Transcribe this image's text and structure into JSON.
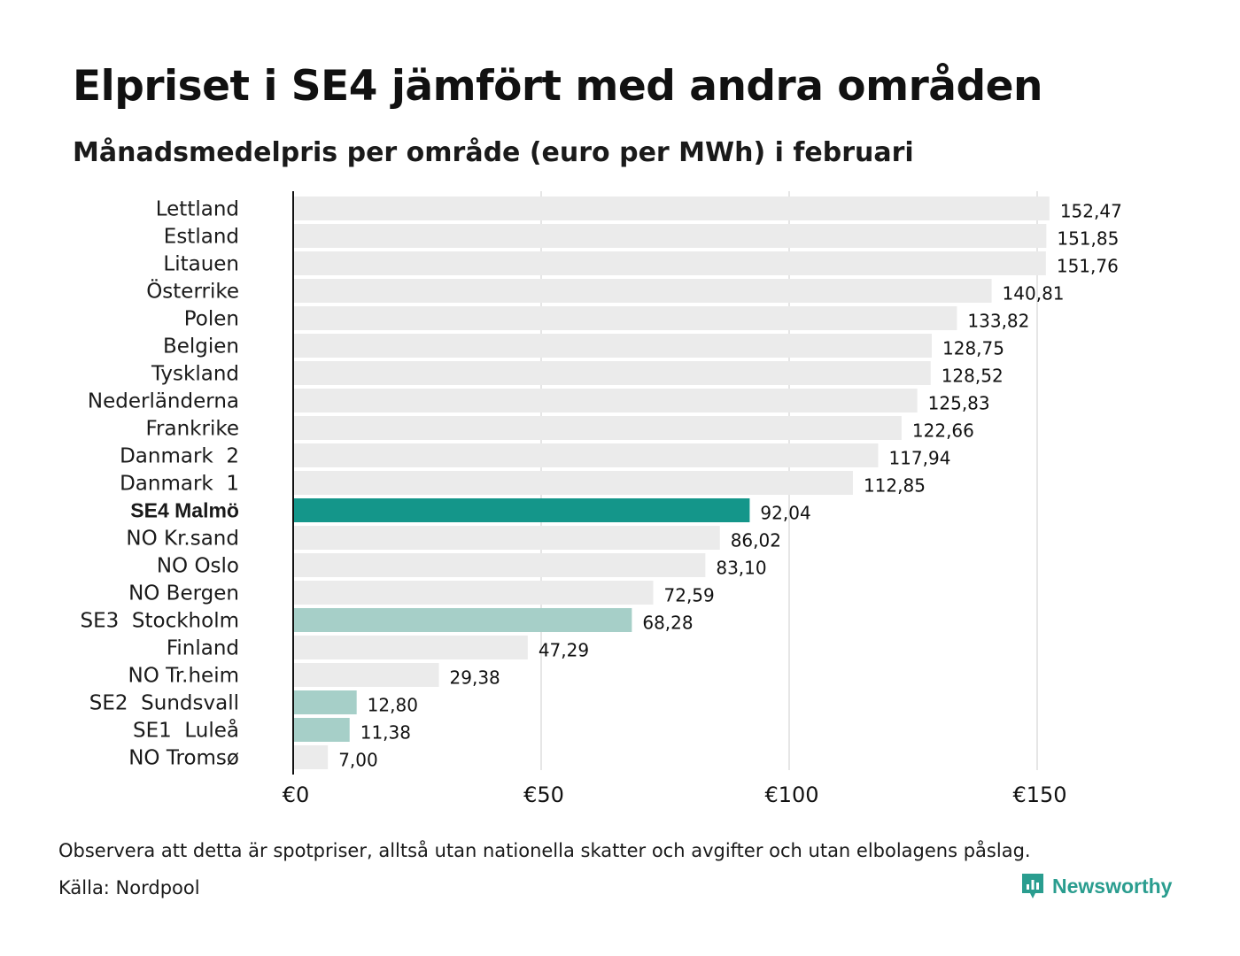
{
  "header": {
    "title": "Elpriset i SE4 jämfört med andra områden",
    "subtitle": "Månadsmedelpris per område (euro per MWh) i februari"
  },
  "footer": {
    "note": "Observera att detta är spotpriser, alltså utan nationella skatter och avgifter och utan elbolagens påslag.",
    "source": "Källa: Nordpool",
    "brand": "Newsworthy",
    "brand_icon": "newsworthy-logo-icon"
  },
  "colors": {
    "bar_default": "#ebebeb",
    "bar_highlight": "#14968a",
    "bar_swedish": "#a6cfc8",
    "grid": "#cccccc",
    "axis": "#111111",
    "brand": "#2a9d8f"
  },
  "chart_data": {
    "type": "bar",
    "orientation": "horizontal",
    "categories": [
      "Lettland",
      "Estland",
      "Litauen",
      "Österrike",
      "Polen",
      "Belgien",
      "Tyskland",
      "Nederländerna",
      "Frankrike",
      "Danmark  2",
      "Danmark  1",
      "SE4 Malmö",
      "NO Kr.sand",
      "NO Oslo",
      "NO Bergen",
      "SE3  Stockholm",
      "Finland",
      "NO Tr.heim",
      "SE2  Sundsvall",
      "SE1  Luleå",
      "NO Tromsø"
    ],
    "values": [
      152.47,
      151.85,
      151.76,
      140.81,
      133.82,
      128.75,
      128.52,
      125.83,
      122.66,
      117.94,
      112.85,
      92.04,
      86.02,
      83.1,
      72.59,
      68.28,
      47.29,
      29.38,
      12.8,
      11.38,
      7.0
    ],
    "value_labels": [
      "152,47",
      "151,85",
      "151,76",
      "140,81",
      "133,82",
      "128,75",
      "128,52",
      "125,83",
      "122,66",
      "117,94",
      "112,85",
      "92,04",
      "86,02",
      "83,10",
      "72,59",
      "68,28",
      "47,29",
      "29,38",
      "12,80",
      "11,38",
      "7,00"
    ],
    "highlight": [
      "default",
      "default",
      "default",
      "default",
      "default",
      "default",
      "default",
      "default",
      "default",
      "default",
      "default",
      "primary",
      "default",
      "default",
      "default",
      "swedish",
      "default",
      "default",
      "swedish",
      "swedish",
      "default"
    ],
    "xlim": [
      0,
      160
    ],
    "xticks": [
      0,
      50,
      100,
      150
    ],
    "xtick_labels": [
      "€0",
      "€50",
      "€100",
      "€150"
    ],
    "grid": "vertical",
    "xlabel": "",
    "ylabel": ""
  }
}
